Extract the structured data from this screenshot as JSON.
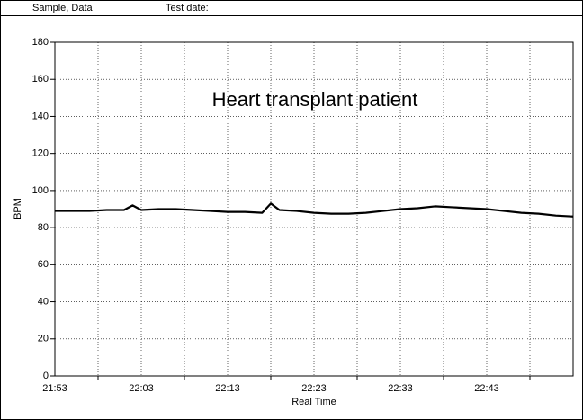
{
  "header": {
    "sample": "Sample, Data",
    "test_date": "Test date:"
  },
  "chart_data": {
    "type": "line",
    "annotation": "Heart transplant patient",
    "xlabel": "Real Time",
    "ylabel": "BPM",
    "x": [
      1313,
      1315,
      1317,
      1319,
      1321,
      1322,
      1323,
      1325,
      1327,
      1329,
      1331,
      1333,
      1335,
      1337,
      1338,
      1339,
      1341,
      1343,
      1345,
      1347,
      1349,
      1351,
      1353,
      1355,
      1357,
      1359,
      1361,
      1363,
      1365,
      1367,
      1369,
      1371,
      1373
    ],
    "series": [
      {
        "color": "#000000",
        "values": [
          89,
          89,
          89,
          89.5,
          89.5,
          92,
          89.5,
          90,
          90,
          89.5,
          89,
          88.5,
          88.5,
          88,
          93,
          89.5,
          89,
          88,
          87.5,
          87.5,
          88,
          89,
          90,
          90.5,
          91.5,
          91,
          90.5,
          90,
          89,
          88,
          87.5,
          86.5,
          86
        ]
      }
    ],
    "xlim": [
      1313,
      1373
    ],
    "xticks": [
      {
        "value": 1313,
        "label": "21:53"
      },
      {
        "value": 1323,
        "label": "22:03"
      },
      {
        "value": 1333,
        "label": "22:13"
      },
      {
        "value": 1343,
        "label": "22:23"
      },
      {
        "value": 1353,
        "label": "22:33"
      },
      {
        "value": 1363,
        "label": "22:43"
      }
    ],
    "x_minor_ticks": [
      1318,
      1328,
      1338,
      1348,
      1358,
      1368
    ],
    "ylim": [
      0,
      180
    ],
    "yticks": [
      0,
      20,
      40,
      60,
      80,
      100,
      120,
      140,
      160,
      180
    ],
    "grid": true
  }
}
